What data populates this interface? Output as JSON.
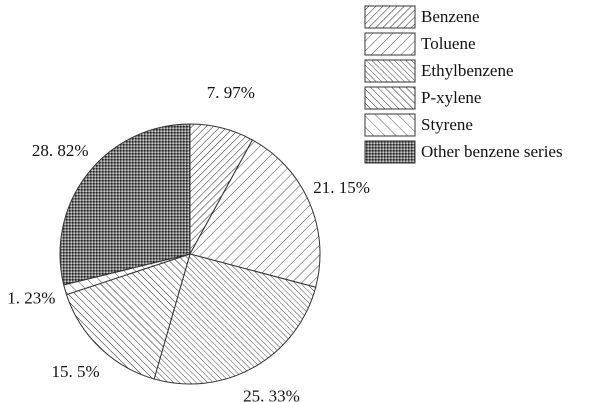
{
  "chart_data": {
    "type": "pie",
    "categories": [
      "Benzene",
      "Toluene",
      "Ethylbenzene",
      "P-xylene",
      "Styrene",
      "Other benzene series"
    ],
    "values": [
      7.97,
      21.15,
      25.33,
      15.5,
      1.23,
      28.82
    ],
    "value_labels": [
      "7. 97%",
      "21. 15%",
      "25. 33%",
      "15. 5%",
      "1. 23%",
      "28. 82%"
    ],
    "legend": "upper right"
  }
}
